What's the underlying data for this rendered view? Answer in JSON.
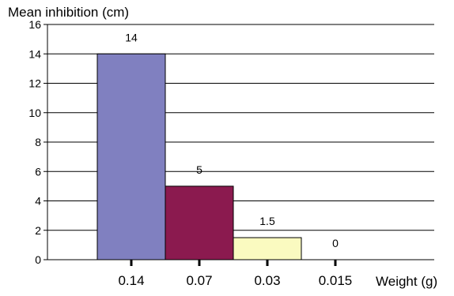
{
  "chart_data": {
    "type": "bar",
    "ylabel": "Mean inhibition (cm)",
    "xlabel": "Weight (g)",
    "categories": [
      "0.14",
      "0.07",
      "0.03",
      "0.015"
    ],
    "values": [
      14,
      5,
      1.5,
      0
    ],
    "data_labels": [
      "14",
      "5",
      "1.5",
      "0"
    ],
    "bar_colors": [
      "#8080c0",
      "#8b1a4f",
      "#fafac0",
      "#ffffff"
    ],
    "ylim": [
      0,
      16
    ],
    "yticks": [
      0,
      2,
      4,
      6,
      8,
      10,
      12,
      14,
      16
    ],
    "grid": true,
    "legend": "none"
  }
}
